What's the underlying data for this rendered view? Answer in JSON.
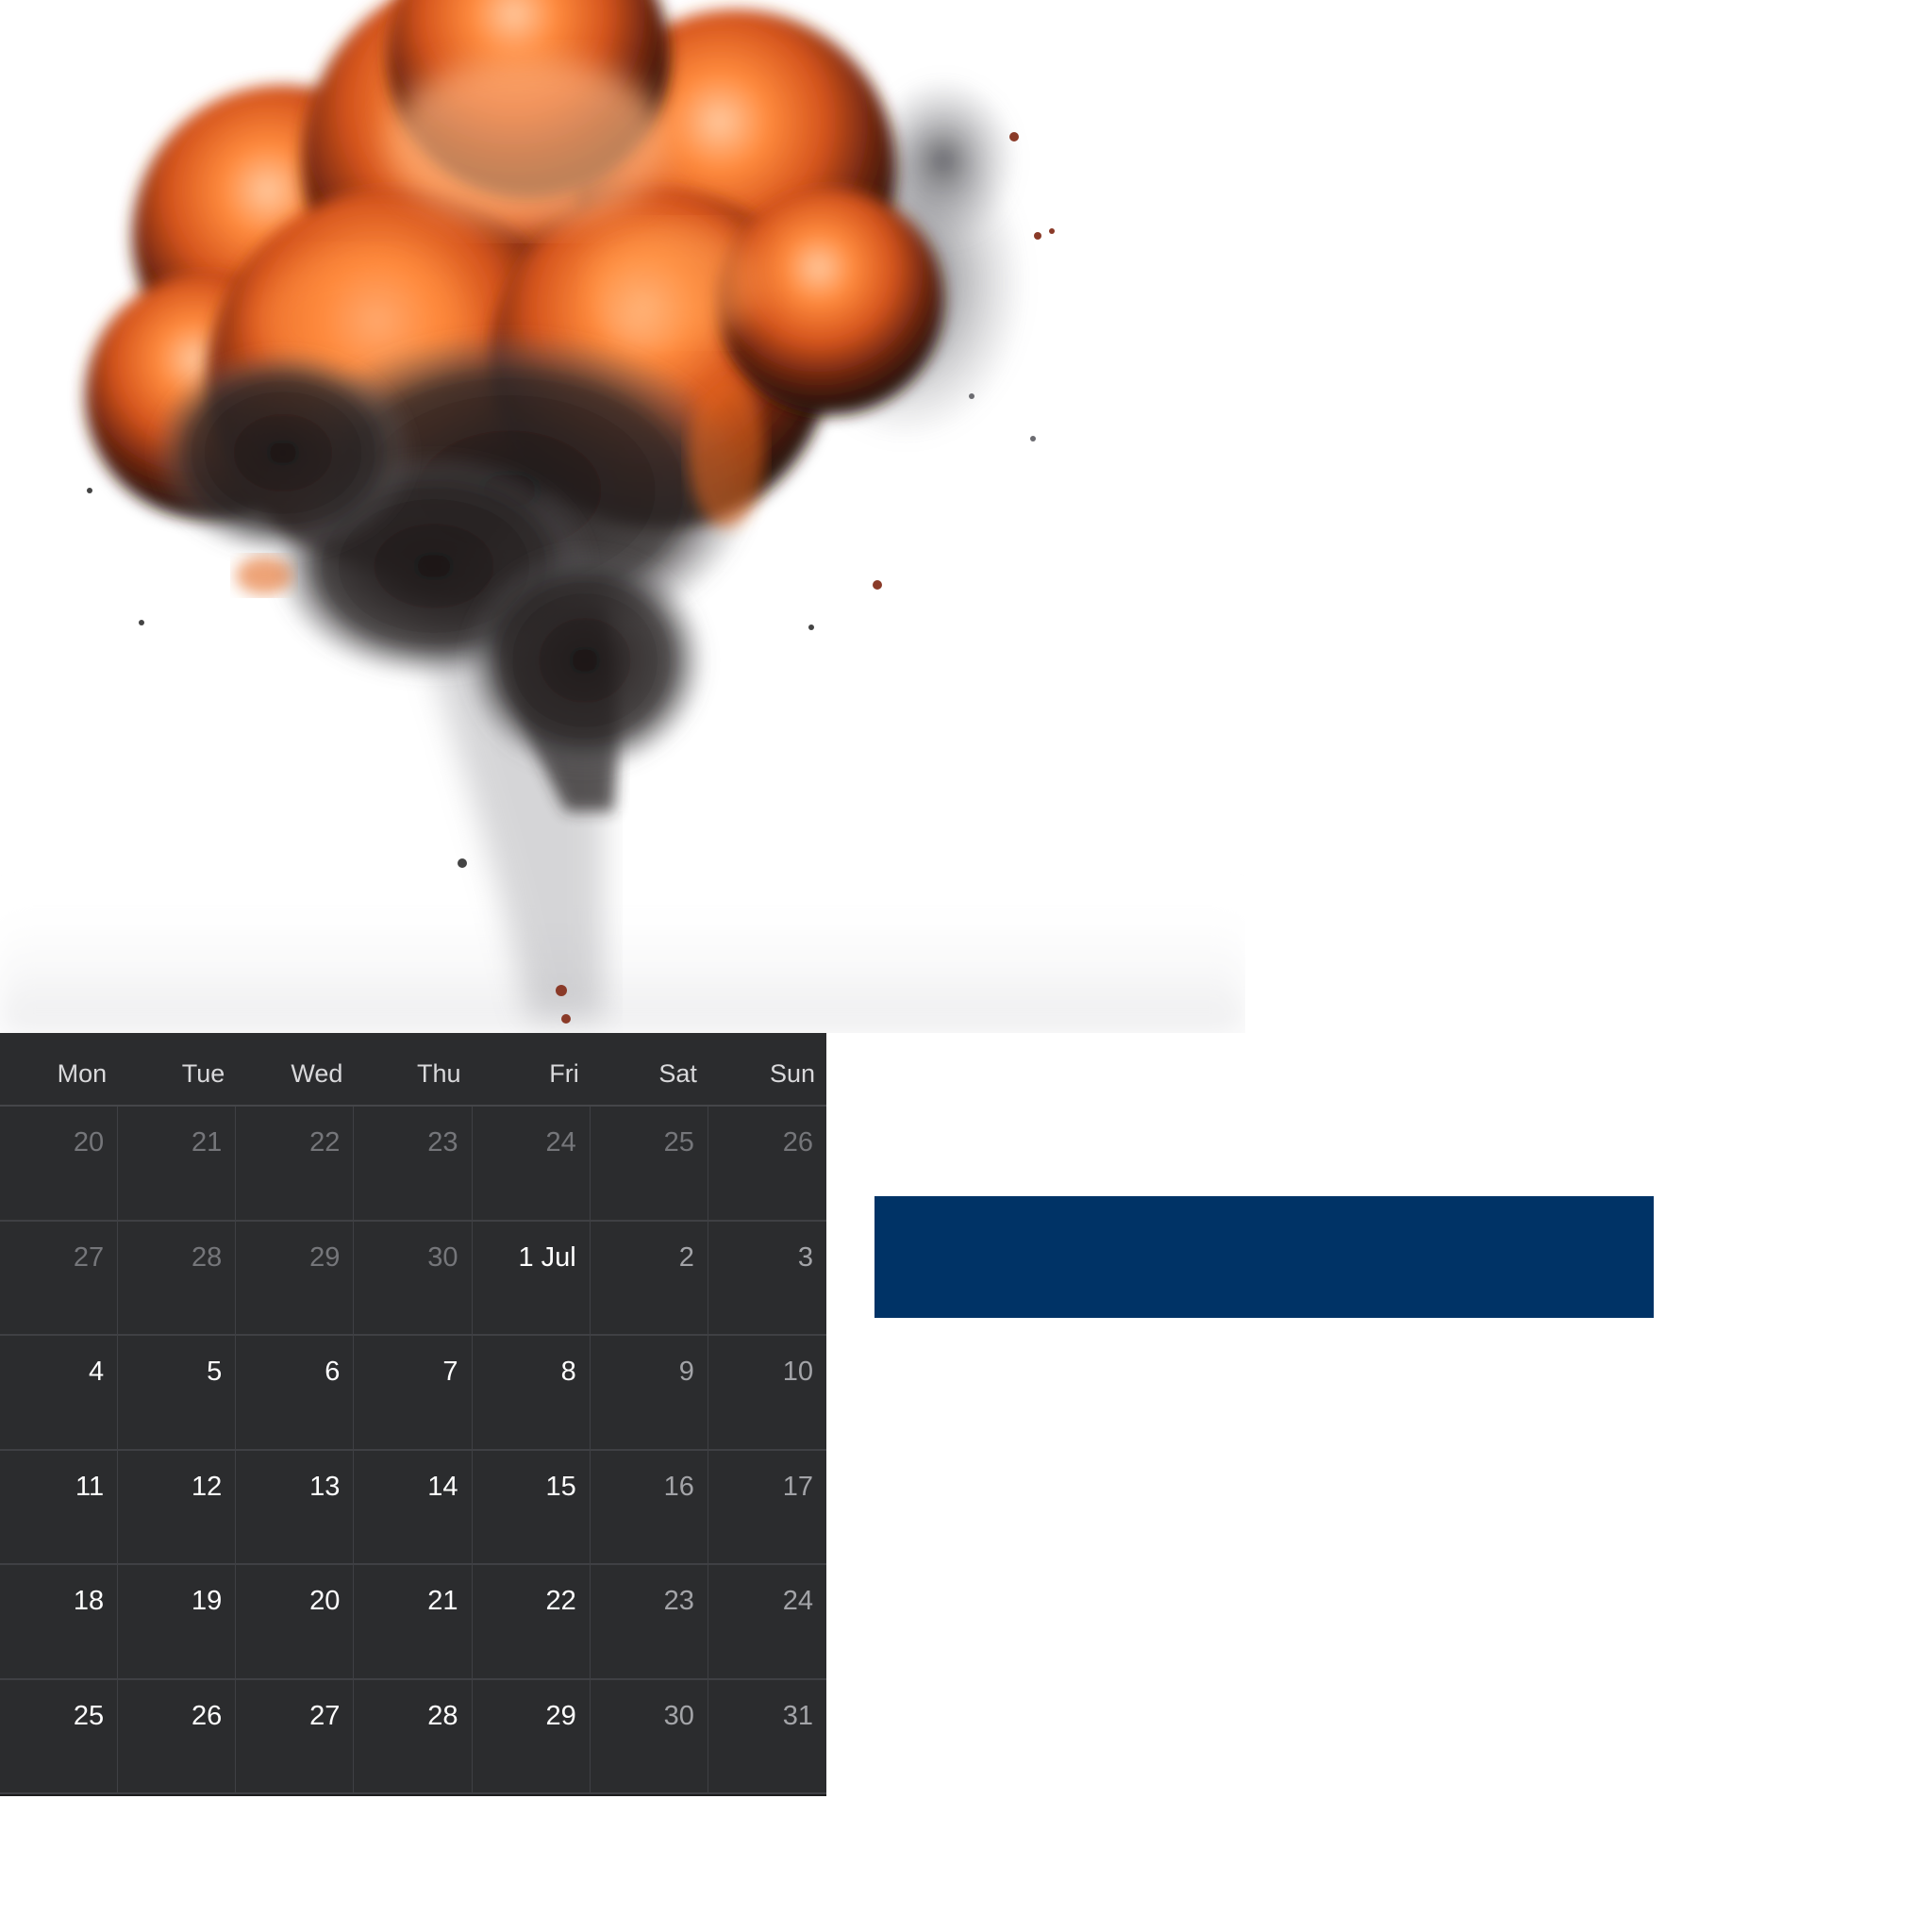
{
  "illustration": {
    "icon": "explosion-illustration",
    "colors": {
      "fire_bright": "#ff8a3c",
      "fire_mid": "#d4531c",
      "fire_dark": "#6b2410",
      "smoke": "#1c1616",
      "smoke_light": "#6b6b70"
    }
  },
  "calendar": {
    "weekdays": [
      "Mon",
      "Tue",
      "Wed",
      "Thu",
      "Fri",
      "Sat",
      "Sun"
    ],
    "weeks": [
      [
        "20",
        "21",
        "22",
        "23",
        "24",
        "25",
        "26"
      ],
      [
        "27",
        "28",
        "29",
        "30",
        "1 Jul",
        "2",
        "3"
      ],
      [
        "4",
        "5",
        "6",
        "7",
        "8",
        "9",
        "10"
      ],
      [
        "11",
        "12",
        "13",
        "14",
        "15",
        "16",
        "17"
      ],
      [
        "18",
        "19",
        "20",
        "21",
        "22",
        "23",
        "24"
      ],
      [
        "25",
        "26",
        "27",
        "28",
        "29",
        "30",
        "31"
      ]
    ],
    "colors": {
      "background": "#2b2c2e",
      "text": "#ffffff",
      "muted_text": "#75767a",
      "weekend_text": "#a3a4a8"
    }
  },
  "banner": {
    "color": "#003366"
  }
}
